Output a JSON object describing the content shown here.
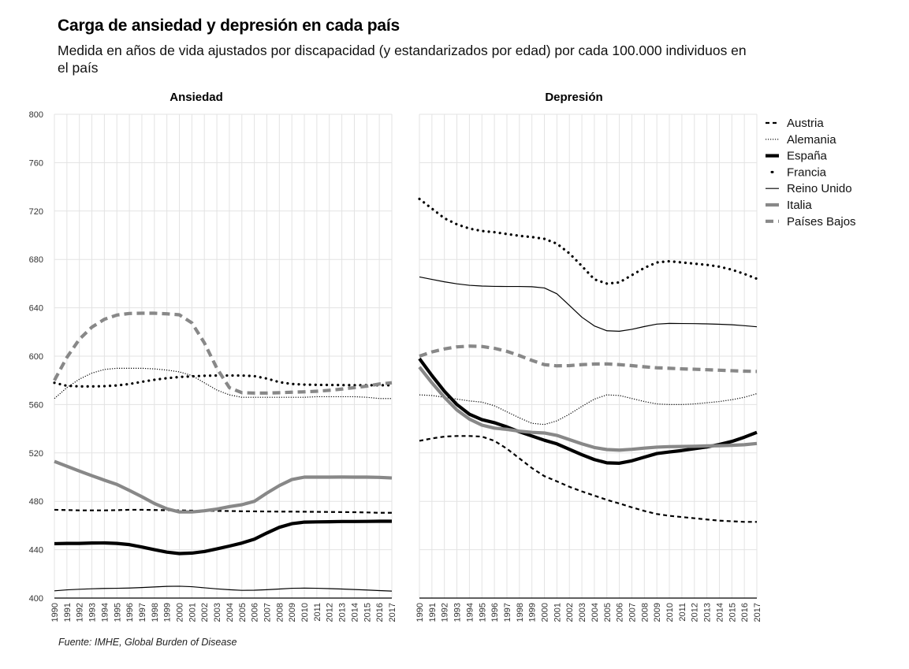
{
  "title": "Carga de ansiedad y depresión en cada país",
  "subtitle": "Medida en años de vida ajustados por discapacidad (y estandarizados por edad) por cada 100.000 individuos en el país",
  "source": "Fuente: IMHE, Global Burden of Disease",
  "chart_data": {
    "type": "line",
    "ylim": [
      400,
      800
    ],
    "yticks": [
      400,
      440,
      480,
      520,
      560,
      600,
      640,
      680,
      720,
      760,
      800
    ],
    "grid": true,
    "legend_position": "right",
    "x": [
      1990,
      1991,
      1992,
      1993,
      1994,
      1995,
      1996,
      1997,
      1998,
      1999,
      2000,
      2001,
      2002,
      2003,
      2004,
      2005,
      2006,
      2007,
      2008,
      2009,
      2010,
      2011,
      2012,
      2013,
      2014,
      2015,
      2016,
      2017
    ],
    "series_styles": [
      {
        "name": "Austria",
        "color": "#000000",
        "dash": "dashed",
        "weight": "medium"
      },
      {
        "name": "Alemania",
        "color": "#000000",
        "dash": "dotted",
        "weight": "thin"
      },
      {
        "name": "España",
        "color": "#000000",
        "dash": "solid",
        "weight": "heavy"
      },
      {
        "name": "Francia",
        "color": "#000000",
        "dash": "dots",
        "weight": "medium"
      },
      {
        "name": "Reino Unido",
        "color": "#000000",
        "dash": "solid",
        "weight": "thin"
      },
      {
        "name": "Italia",
        "color": "#888888",
        "dash": "solid",
        "weight": "heavy"
      },
      {
        "name": "Países Bajos",
        "color": "#888888",
        "dash": "dashed",
        "weight": "heavy"
      }
    ],
    "panels": [
      {
        "title": "Ansiedad",
        "series": [
          {
            "name": "Austria",
            "values": [
              473,
              472.8,
              472.5,
              472.5,
              472.5,
              472.7,
              473,
              473,
              472.8,
              472.6,
              472.5,
              472.3,
              472.2,
              472.1,
              472,
              471.8,
              471.7,
              471.6,
              471.5,
              471.5,
              471.4,
              471.3,
              471.2,
              471.1,
              471,
              470.8,
              470.5,
              470.5
            ]
          },
          {
            "name": "Alemania",
            "values": [
              565,
              574,
              581,
              586,
              589,
              590,
              590,
              590,
              589.5,
              588.5,
              587,
              584,
              578,
              572,
              568,
              566,
              566,
              566,
              566,
              566,
              566,
              566.5,
              566.5,
              566.5,
              566.5,
              566,
              565,
              565
            ]
          },
          {
            "name": "España",
            "values": [
              445,
              445.2,
              445.2,
              445.5,
              445.6,
              445.2,
              444.2,
              442.2,
              440,
              438,
              436.8,
              437.2,
              438.5,
              440.7,
              443,
              445.5,
              448.7,
              453.8,
              458.5,
              461.5,
              462.8,
              463,
              463.1,
              463.3,
              463.3,
              463.4,
              463.5,
              463.5
            ]
          },
          {
            "name": "Francia",
            "values": [
              578,
              575.5,
              575,
              575,
              575.2,
              575.8,
              577,
              578.8,
              580.5,
              581.8,
              582.8,
              583.3,
              583.8,
              584,
              584,
              584,
              583.5,
              581.5,
              578.5,
              577,
              576.5,
              576.3,
              576.2,
              576.1,
              576,
              576,
              576,
              576
            ]
          },
          {
            "name": "Reino Unido",
            "values": [
              406,
              406.8,
              407.3,
              407.7,
              408,
              408.1,
              408.3,
              408.7,
              409.2,
              409.7,
              409.8,
              409.4,
              408.5,
              407.6,
              406.9,
              406.4,
              406.5,
              406.9,
              407.5,
              408.1,
              408.2,
              408.1,
              407.8,
              407.5,
              407.1,
              406.7,
              406.2,
              405.8
            ]
          },
          {
            "name": "Italia",
            "values": [
              513,
              509,
              505,
              501.2,
              497.5,
              494,
              489,
              483.8,
              478.2,
              473.8,
              471.2,
              471.2,
              472.2,
              473.6,
              475.6,
              477.2,
              480,
              486.8,
              493,
              498,
              500,
              500,
              500,
              500.1,
              500,
              500,
              499.8,
              499.3
            ]
          },
          {
            "name": "Países Bajos",
            "values": [
              580,
              599,
              614,
              624,
              630.5,
              634,
              635.3,
              635.5,
              635.5,
              635,
              634.2,
              627.5,
              611,
              590,
              574,
              569.8,
              569.5,
              569.5,
              569.8,
              570.2,
              570.5,
              571,
              571.8,
              572.8,
              574,
              575.2,
              577,
              578
            ]
          }
        ]
      },
      {
        "title": "Depresión",
        "series": [
          {
            "name": "Austria",
            "values": [
              530,
              532,
              533.5,
              534,
              534,
              533.5,
              530,
              523.5,
              515.5,
              507.5,
              500.8,
              496.5,
              492,
              488.2,
              484.7,
              481.2,
              478.2,
              475,
              472,
              469.5,
              468,
              467,
              466,
              465,
              464,
              463.5,
              463,
              463
            ]
          },
          {
            "name": "Alemania",
            "values": [
              568,
              567.5,
              566,
              564.5,
              563,
              562,
              559,
              554,
              549,
              544.5,
              543.5,
              546.5,
              552,
              558.5,
              564.5,
              568,
              567.5,
              565,
              562.5,
              560.5,
              560,
              560,
              560.5,
              561.5,
              562.5,
              564,
              566,
              569
            ]
          },
          {
            "name": "España",
            "values": [
              598,
              584,
              571,
              560,
              552,
              547.5,
              545,
              541.5,
              537.5,
              534,
              530.5,
              527.5,
              523,
              518.5,
              514.5,
              511.8,
              511.5,
              513.5,
              516.5,
              519.5,
              520.8,
              522,
              523.5,
              525,
              527,
              529.5,
              533,
              537
            ]
          },
          {
            "name": "Francia",
            "values": [
              730,
              722,
              714,
              709,
              705.5,
              703.5,
              702.5,
              701,
              699.5,
              698.5,
              697,
              693,
              685,
              674.5,
              663.5,
              660,
              661,
              667,
              673,
              677.5,
              678.5,
              677.5,
              676.5,
              675.5,
              674,
              671.5,
              668,
              664
            ]
          },
          {
            "name": "Reino Unido",
            "values": [
              665.5,
              663.5,
              661.5,
              659.8,
              658.6,
              658,
              657.7,
              657.6,
              657.6,
              657.4,
              656.4,
              651.6,
              642,
              632.2,
              625,
              621,
              620.6,
              622.2,
              624.5,
              626.5,
              627.1,
              627,
              626.9,
              626.7,
              626.4,
              626,
              625.2,
              624.3
            ]
          },
          {
            "name": "Italia",
            "values": [
              591,
              578,
              566,
              555.5,
              548,
              543,
              540.5,
              539.5,
              538,
              537,
              536.5,
              534.5,
              531,
              527.5,
              524.5,
              522.8,
              522.3,
              523,
              524,
              524.8,
              525.2,
              525.3,
              525.5,
              525.8,
              526,
              526.3,
              526.8,
              527.8
            ]
          },
          {
            "name": "Países Bajos",
            "values": [
              600,
              603.5,
              606,
              607.7,
              608.3,
              608,
              606.5,
              604,
              600.5,
              596.5,
              593,
              592,
              592.2,
              593,
              593.5,
              593.6,
              593,
              592.2,
              591.2,
              590.4,
              590,
              589.5,
              589.2,
              588.8,
              588.4,
              588,
              587.6,
              587.4
            ]
          }
        ]
      }
    ]
  }
}
